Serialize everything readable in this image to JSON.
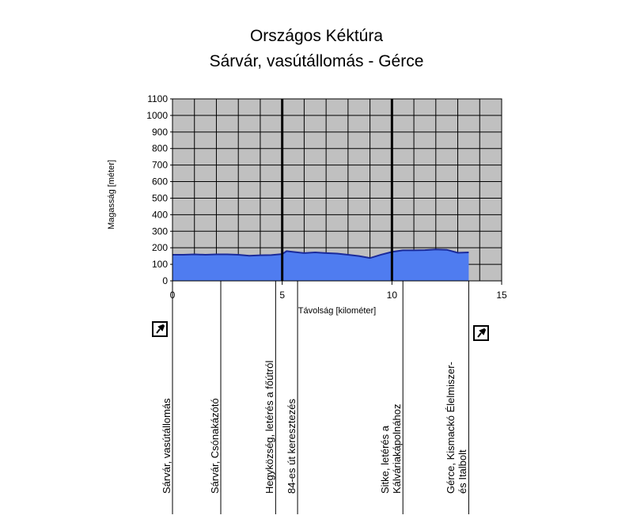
{
  "title_line1": "Országos Kéktúra",
  "title_line2": "Sárvár, vasútállomás - Gérce",
  "chart_data": {
    "type": "area",
    "xlabel": "Távolság [kilométer]",
    "ylabel": "Magasság [méter]",
    "xlim": [
      0,
      15
    ],
    "ylim": [
      0,
      1100
    ],
    "xticks": [
      "0",
      "5",
      "10",
      "15"
    ],
    "yticks": [
      "0",
      "100",
      "200",
      "300",
      "400",
      "500",
      "600",
      "700",
      "800",
      "900",
      "1000",
      "1100"
    ],
    "grid": true,
    "fill_color": "#4f7cf0",
    "line_color": "#1a2a9a",
    "plot_background": "#c0c0c0",
    "x": [
      0,
      0.5,
      1,
      1.5,
      2,
      2.5,
      3,
      3.5,
      4,
      4.5,
      5,
      5.2,
      5.5,
      6,
      6.5,
      7,
      7.5,
      8,
      8.5,
      9,
      9.5,
      10,
      10.5,
      11,
      11.5,
      12,
      12.5,
      13,
      13.5
    ],
    "y": [
      158,
      158,
      160,
      158,
      160,
      160,
      158,
      152,
      155,
      156,
      162,
      180,
      175,
      168,
      172,
      168,
      165,
      158,
      150,
      138,
      158,
      175,
      185,
      185,
      186,
      190,
      188,
      170,
      172
    ],
    "waypoints": [
      {
        "km": 0,
        "lines": [
          "Sárvár, vasútállomás"
        ]
      },
      {
        "km": 2.2,
        "lines": [
          "Sárvár, Csónakázótó"
        ]
      },
      {
        "km": 4.7,
        "lines": [
          "Hegyközség, letérés a főútról"
        ]
      },
      {
        "km": 5.7,
        "lines": [
          "84-es út keresztezés"
        ]
      },
      {
        "km": 10.5,
        "lines": [
          "Sitke, letérés a",
          "Kálváriakápolnához"
        ]
      },
      {
        "km": 13.5,
        "lines": [
          "Gérce, Kismackó Élelmiszer-",
          "és Italbolt"
        ]
      }
    ],
    "stamps": [
      "start-stamp",
      "end-stamp"
    ]
  }
}
